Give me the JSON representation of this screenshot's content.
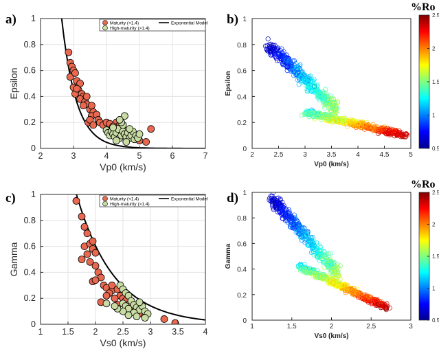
{
  "chart_data": [
    {
      "type": "scatter",
      "panel_label": "a)",
      "xlabel": "Vp0 (km/s)",
      "ylabel": "Epsilon",
      "xlim": [
        2,
        7
      ],
      "ylim": [
        0,
        1
      ],
      "xticks": [
        "2",
        "3",
        "4",
        "5",
        "6",
        "7"
      ],
      "yticks": [
        "0",
        "0.2",
        "0.4",
        "0.6",
        "0.8",
        "1"
      ],
      "grid": true,
      "legend_position": "top-right",
      "legend": [
        "Maturity (<1.4)",
        "High-maturity (>1.4)",
        "Exponential Model"
      ],
      "colors": {
        "maturity": "#e8694f",
        "high_maturity": "#c8dca3",
        "model": "#000000"
      },
      "series": [
        {
          "name": "Maturity (<1.4)",
          "points": [
            [
              2.85,
              0.74
            ],
            [
              2.9,
              0.66
            ],
            [
              2.95,
              0.63
            ],
            [
              3.0,
              0.6
            ],
            [
              2.9,
              0.55
            ],
            [
              3.05,
              0.58
            ],
            [
              3.1,
              0.52
            ],
            [
              3.2,
              0.5
            ],
            [
              3.15,
              0.45
            ],
            [
              3.0,
              0.47
            ],
            [
              3.05,
              0.42
            ],
            [
              3.25,
              0.42
            ],
            [
              3.3,
              0.4
            ],
            [
              3.2,
              0.38
            ],
            [
              3.35,
              0.36
            ],
            [
              3.4,
              0.34
            ],
            [
              3.5,
              0.3
            ],
            [
              3.6,
              0.28
            ],
            [
              3.55,
              0.25
            ],
            [
              3.7,
              0.26
            ],
            [
              3.45,
              0.2
            ],
            [
              3.5,
              0.22
            ],
            [
              3.75,
              0.22
            ],
            [
              3.8,
              0.2
            ],
            [
              3.9,
              0.18
            ],
            [
              4.0,
              0.2
            ],
            [
              4.1,
              0.19
            ],
            [
              4.3,
              0.2
            ],
            [
              4.2,
              0.17
            ],
            [
              4.4,
              0.18
            ],
            [
              4.5,
              0.15
            ],
            [
              4.6,
              0.12
            ],
            [
              4.8,
              0.1
            ],
            [
              5.0,
              0.06
            ],
            [
              5.2,
              0.05
            ],
            [
              5.35,
              0.15
            ],
            [
              3.3,
              0.33
            ],
            [
              3.55,
              0.33
            ],
            [
              3.1,
              0.46
            ],
            [
              3.4,
              0.4
            ],
            [
              3.6,
              0.18
            ],
            [
              4.15,
              0.14
            ]
          ]
        },
        {
          "name": "High-maturity (>1.4)",
          "points": [
            [
              4.0,
              0.14
            ],
            [
              4.05,
              0.12
            ],
            [
              4.1,
              0.1
            ],
            [
              4.15,
              0.13
            ],
            [
              4.2,
              0.11
            ],
            [
              4.25,
              0.09
            ],
            [
              4.3,
              0.12
            ],
            [
              4.35,
              0.15
            ],
            [
              4.4,
              0.08
            ],
            [
              4.45,
              0.1
            ],
            [
              4.5,
              0.13
            ],
            [
              4.55,
              0.11
            ],
            [
              4.6,
              0.09
            ],
            [
              4.65,
              0.12
            ],
            [
              4.7,
              0.08
            ],
            [
              4.75,
              0.1
            ],
            [
              4.8,
              0.13
            ],
            [
              4.85,
              0.07
            ],
            [
              4.9,
              0.1
            ],
            [
              4.95,
              0.08
            ],
            [
              5.0,
              0.11
            ],
            [
              4.5,
              0.18
            ],
            [
              4.55,
              0.25
            ],
            [
              4.45,
              0.2
            ],
            [
              4.3,
              0.06
            ],
            [
              4.6,
              0.05
            ],
            [
              4.2,
              0.16
            ],
            [
              4.7,
              0.15
            ],
            [
              4.4,
              0.22
            ]
          ]
        }
      ],
      "model": {
        "type": "exponential",
        "x_start": 2.4,
        "x_end": 7.0
      }
    },
    {
      "type": "scatter",
      "panel_label": "b)",
      "xlabel": "Vp0 (km/s)",
      "ylabel": "Epsilon",
      "xlim": [
        2,
        5
      ],
      "ylim": [
        0,
        1
      ],
      "xticks": [
        "2",
        "2.5",
        "3",
        "3.5",
        "4",
        "4.5",
        "5"
      ],
      "yticks": [
        "0",
        "0.2",
        "0.4",
        "0.6",
        "0.8",
        "1"
      ],
      "grid": false,
      "colorbar": {
        "title": "%Ro",
        "range": [
          0.5,
          2.5
        ],
        "ticks": [
          "0.5",
          "1",
          "1.5",
          "2",
          "2.5"
        ],
        "position": "right"
      },
      "branches": [
        {
          "name": "",
          "x_range": [
            2.3,
            3.6
          ],
          "y_center_range": [
            0.8,
            0.3
          ],
          "ro_range": [
            0.6,
            1.6
          ]
        },
        {
          "name": "",
          "x_range": [
            3.0,
            4.9
          ],
          "y_center_range": [
            0.28,
            0.1
          ],
          "ro_range": [
            1.3,
            2.4
          ]
        }
      ]
    },
    {
      "type": "scatter",
      "panel_label": "c)",
      "xlabel": "Vs0 (km/s)",
      "ylabel": "Gamma",
      "xlim": [
        1,
        4
      ],
      "ylim": [
        0,
        1
      ],
      "xticks": [
        "1",
        "1.5",
        "2",
        "2.5",
        "3",
        "3.5",
        "4"
      ],
      "yticks": [
        "0",
        "0.2",
        "0.4",
        "0.6",
        "0.8",
        "1"
      ],
      "grid": true,
      "legend_position": "top-right",
      "legend": [
        "Maturity (<1.4)",
        "High-maturity (>1.4)",
        "Exponential Model"
      ],
      "colors": {
        "maturity": "#e8694f",
        "high_maturity": "#c8dca3",
        "model": "#000000"
      },
      "series": [
        {
          "name": "Maturity (<1.4)",
          "points": [
            [
              1.65,
              0.95
            ],
            [
              1.75,
              0.83
            ],
            [
              1.8,
              0.75
            ],
            [
              1.85,
              0.7
            ],
            [
              1.8,
              0.6
            ],
            [
              1.9,
              0.62
            ],
            [
              1.95,
              0.58
            ],
            [
              1.85,
              0.54
            ],
            [
              2.0,
              0.55
            ],
            [
              1.75,
              0.5
            ],
            [
              1.9,
              0.48
            ],
            [
              2.0,
              0.45
            ],
            [
              2.05,
              0.4
            ],
            [
              2.1,
              0.36
            ],
            [
              1.95,
              0.33
            ],
            [
              2.15,
              0.3
            ],
            [
              2.2,
              0.28
            ],
            [
              2.3,
              0.26
            ],
            [
              2.25,
              0.24
            ],
            [
              2.4,
              0.27
            ],
            [
              2.45,
              0.22
            ],
            [
              2.35,
              0.2
            ],
            [
              2.5,
              0.2
            ],
            [
              2.55,
              0.18
            ],
            [
              2.6,
              0.15
            ],
            [
              2.65,
              0.12
            ],
            [
              2.75,
              0.1
            ],
            [
              2.85,
              0.08
            ],
            [
              2.9,
              0.06
            ],
            [
              3.25,
              0.04
            ],
            [
              3.45,
              0.01
            ],
            [
              2.0,
              0.34
            ],
            [
              2.2,
              0.22
            ],
            [
              2.4,
              0.15
            ],
            [
              2.1,
              0.17
            ],
            [
              2.3,
              0.3
            ],
            [
              1.95,
              0.64
            ]
          ]
        },
        {
          "name": "High-maturity (>1.4)",
          "points": [
            [
              2.45,
              0.3
            ],
            [
              2.5,
              0.27
            ],
            [
              2.55,
              0.24
            ],
            [
              2.6,
              0.22
            ],
            [
              2.5,
              0.16
            ],
            [
              2.55,
              0.14
            ],
            [
              2.6,
              0.12
            ],
            [
              2.65,
              0.18
            ],
            [
              2.7,
              0.15
            ],
            [
              2.75,
              0.13
            ],
            [
              2.8,
              0.11
            ],
            [
              2.85,
              0.14
            ],
            [
              2.9,
              0.1
            ],
            [
              2.95,
              0.08
            ],
            [
              2.7,
              0.09
            ],
            [
              2.6,
              0.07
            ],
            [
              2.5,
              0.1
            ],
            [
              2.4,
              0.12
            ],
            [
              2.8,
              0.17
            ],
            [
              2.9,
              0.05
            ],
            [
              2.35,
              0.14
            ],
            [
              2.2,
              0.16
            ],
            [
              2.75,
              0.06
            ]
          ]
        }
      ],
      "model": {
        "type": "exponential",
        "x_start": 1.55,
        "x_end": 4.0
      }
    },
    {
      "type": "scatter",
      "panel_label": "d)",
      "xlabel": "Vs0 (km/s)",
      "ylabel": "Gamma",
      "xlim": [
        1,
        3
      ],
      "ylim": [
        0,
        1
      ],
      "xticks": [
        "1",
        "1.5",
        "2",
        "2.5",
        "3"
      ],
      "yticks": [
        "0",
        "0.2",
        "0.4",
        "0.6",
        "0.8",
        "1"
      ],
      "grid": false,
      "colorbar": {
        "title": "%Ro",
        "range": [
          0.5,
          2.5
        ],
        "ticks": [
          "0.5",
          "1",
          "1.5",
          "2",
          "2.5"
        ],
        "position": "right"
      },
      "branches": [
        {
          "name": "",
          "x_range": [
            1.25,
            2.1
          ],
          "y_center_range": [
            0.95,
            0.35
          ],
          "ro_range": [
            0.6,
            1.6
          ]
        },
        {
          "name": "",
          "x_range": [
            1.6,
            2.7
          ],
          "y_center_range": [
            0.42,
            0.1
          ],
          "ro_range": [
            1.3,
            2.4
          ]
        }
      ]
    }
  ]
}
